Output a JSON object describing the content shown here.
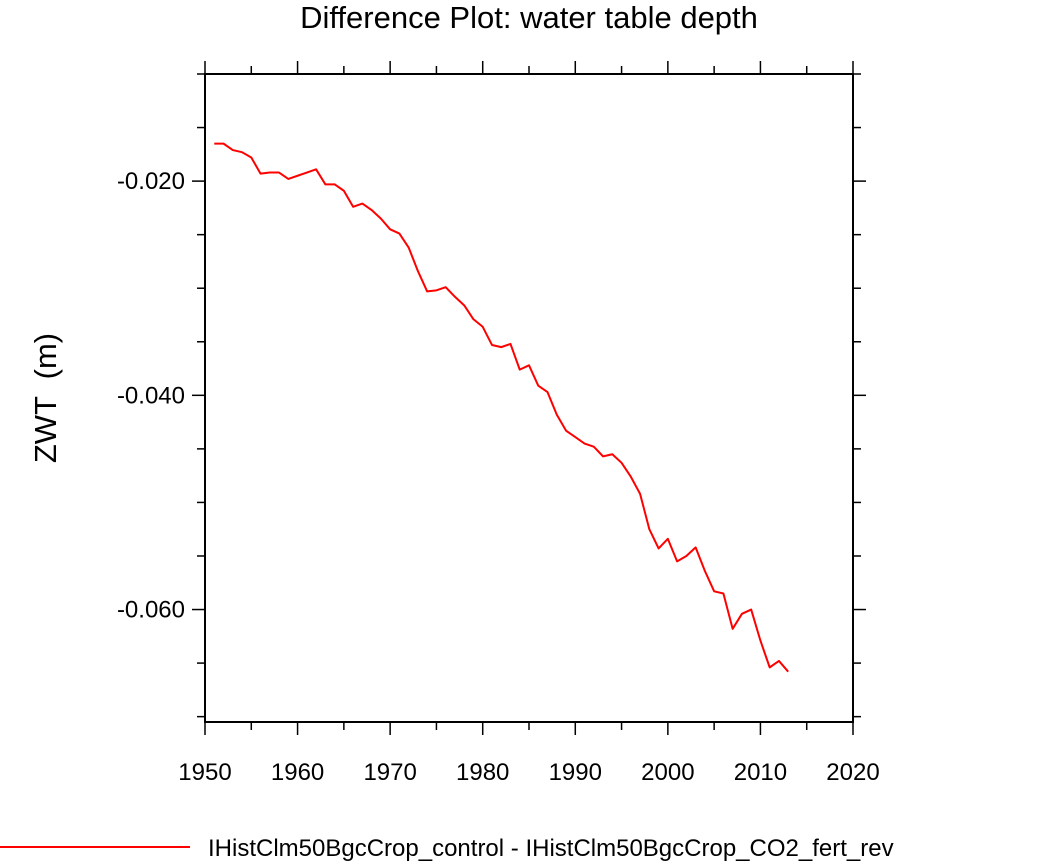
{
  "chart_data": {
    "type": "line",
    "title": "Difference Plot: water table depth",
    "xlabel": "",
    "ylabel": "ZWT  (m)",
    "xlim": [
      1950,
      2020
    ],
    "ylim": [
      -0.0705,
      -0.01
    ],
    "xticks": [
      1950,
      1960,
      1970,
      1980,
      1990,
      2000,
      2010,
      2020
    ],
    "xtick_labels": [
      "1950",
      "1960",
      "1970",
      "1980",
      "1990",
      "2000",
      "2010",
      "2020"
    ],
    "yticks": [
      -0.02,
      -0.04,
      -0.06
    ],
    "ytick_labels": [
      "-0.020",
      "-0.040",
      "-0.060"
    ],
    "grid": false,
    "legend_position": "bottom",
    "series": [
      {
        "name": "IHistClm50BgcCrop_control - IHistClm50BgcCrop_CO2_fert_rev",
        "color": "#ff0000",
        "x": [
          1951,
          1952,
          1953,
          1954,
          1955,
          1956,
          1957,
          1958,
          1959,
          1960,
          1961,
          1962,
          1963,
          1964,
          1965,
          1966,
          1967,
          1968,
          1969,
          1970,
          1971,
          1972,
          1973,
          1974,
          1975,
          1976,
          1977,
          1978,
          1979,
          1980,
          1981,
          1982,
          1983,
          1984,
          1985,
          1986,
          1987,
          1988,
          1989,
          1990,
          1991,
          1992,
          1993,
          1994,
          1995,
          1996,
          1997,
          1998,
          1999,
          2000,
          2001,
          2002,
          2003,
          2004,
          2005,
          2006,
          2007,
          2008,
          2009,
          2010,
          2011,
          2012,
          2013
        ],
        "y": [
          -0.0165,
          -0.0165,
          -0.0171,
          -0.0173,
          -0.0178,
          -0.0193,
          -0.0192,
          -0.0192,
          -0.0198,
          -0.0195,
          -0.0192,
          -0.0189,
          -0.0203,
          -0.0203,
          -0.0209,
          -0.0224,
          -0.0221,
          -0.0227,
          -0.0235,
          -0.0245,
          -0.0249,
          -0.0262,
          -0.0284,
          -0.0303,
          -0.0302,
          -0.0299,
          -0.0308,
          -0.0316,
          -0.0329,
          -0.0336,
          -0.0353,
          -0.0355,
          -0.0352,
          -0.0376,
          -0.0372,
          -0.0391,
          -0.0397,
          -0.0418,
          -0.0433,
          -0.0439,
          -0.0445,
          -0.0448,
          -0.0457,
          -0.0455,
          -0.0463,
          -0.0476,
          -0.0492,
          -0.0525,
          -0.0543,
          -0.0534,
          -0.0555,
          -0.055,
          -0.0542,
          -0.0564,
          -0.0583,
          -0.0585,
          -0.0618,
          -0.0604,
          -0.06,
          -0.0629,
          -0.0654,
          -0.0648,
          -0.0658
        ]
      }
    ]
  }
}
